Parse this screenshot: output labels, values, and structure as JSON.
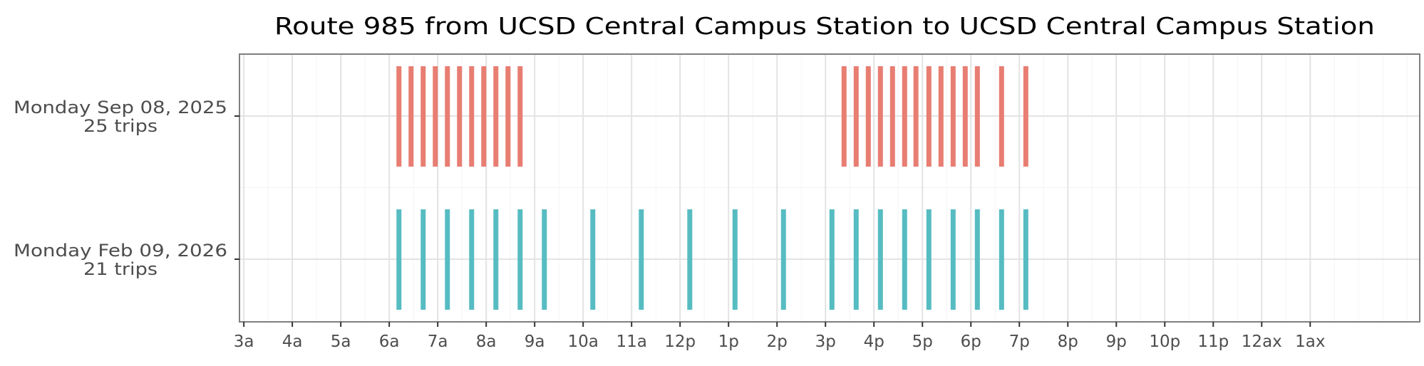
{
  "chart_data": {
    "type": "timeline",
    "title": "Route 985 from UCSD Central Campus Station to UCSD Central Campus Station",
    "xlabel": "",
    "ylabel": "",
    "x_ticks": [
      "3a",
      "4a",
      "5a",
      "6a",
      "7a",
      "8a",
      "9a",
      "10a",
      "11a",
      "12p",
      "1p",
      "2p",
      "3p",
      "4p",
      "5p",
      "6p",
      "7p",
      "8p",
      "9p",
      "10p",
      "11p",
      "12ax",
      "1ax"
    ],
    "x_tick_hours": [
      3,
      4,
      5,
      6,
      7,
      8,
      9,
      10,
      11,
      12,
      13,
      14,
      15,
      16,
      17,
      18,
      19,
      20,
      21,
      22,
      23,
      24,
      25
    ],
    "xlim_hours": [
      2.91,
      27.26
    ],
    "grid": true,
    "series": [
      {
        "label_line1": "Monday Sep 08, 2025",
        "label_line2": "25 trips",
        "color": "#E87D72",
        "trip_times": [
          "6:12",
          "6:27",
          "6:42",
          "6:57",
          "7:12",
          "7:27",
          "7:42",
          "7:57",
          "8:12",
          "8:27",
          "8:42",
          "15:23",
          "15:38",
          "15:53",
          "16:08",
          "16:23",
          "16:38",
          "16:52",
          "17:08",
          "17:23",
          "17:38",
          "17:53",
          "18:08",
          "18:38",
          "19:08"
        ]
      },
      {
        "label_line1": "Monday Feb 09, 2026",
        "label_line2": "21 trips",
        "color": "#56BCC2",
        "trip_times": [
          "6:12",
          "6:42",
          "7:12",
          "7:42",
          "8:12",
          "8:42",
          "9:12",
          "10:12",
          "11:12",
          "12:12",
          "13:08",
          "14:08",
          "15:08",
          "15:38",
          "16:08",
          "16:38",
          "17:08",
          "17:38",
          "18:08",
          "18:38",
          "19:08"
        ]
      }
    ]
  }
}
